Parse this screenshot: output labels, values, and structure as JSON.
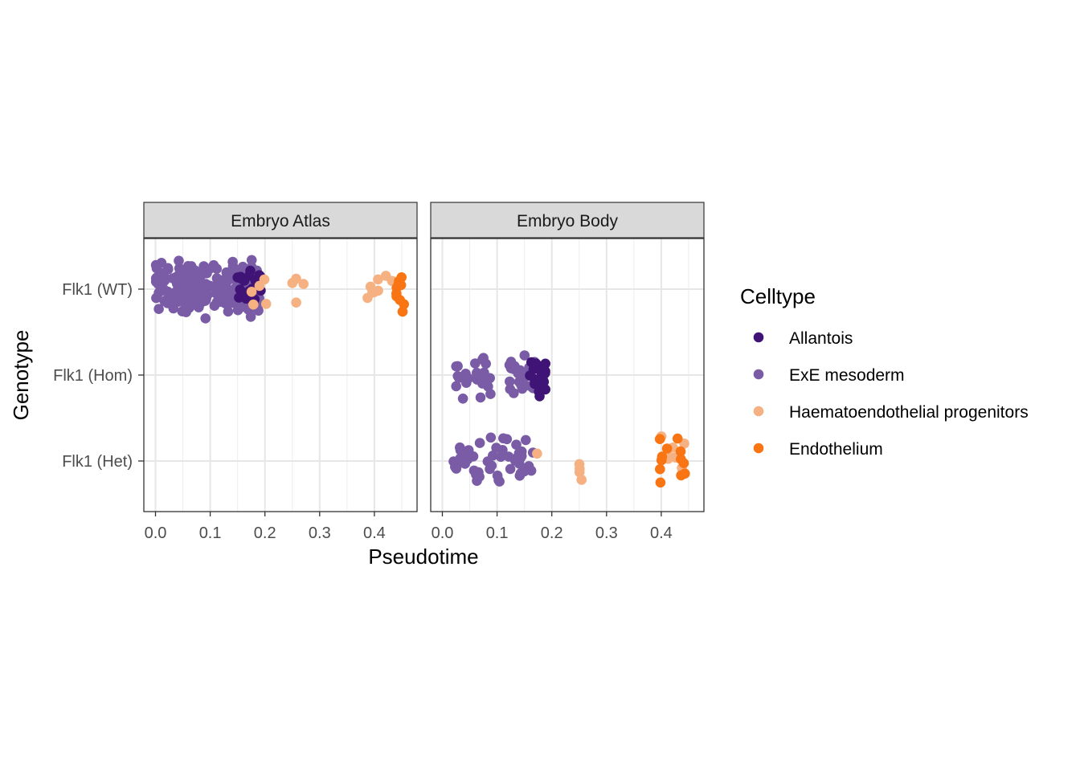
{
  "chart_data": {
    "type": "scatter",
    "subtype": "beeswarm, faceted",
    "xlabel": "Pseudotime",
    "ylabel": "Genotype",
    "xlim": [
      -0.02,
      0.48
    ],
    "x_ticks": [
      0.0,
      0.1,
      0.2,
      0.3,
      0.4
    ],
    "x_tick_labels": [
      "0.0",
      "0.1",
      "0.2",
      "0.3",
      "0.4"
    ],
    "y_categories": [
      "Flk1 (WT)",
      "Flk1 (Hom)",
      "Flk1 (Het)"
    ],
    "grid": true,
    "legend": {
      "title": "Celltype",
      "position": "right",
      "items": [
        {
          "label": "Allantois",
          "color": "#3f1476"
        },
        {
          "label": "ExE mesoderm",
          "color": "#7a5ca6"
        },
        {
          "label": "Haematoendothelial progenitors",
          "color": "#f6b183"
        },
        {
          "label": "Endothelium",
          "color": "#f97513"
        }
      ]
    },
    "facets": [
      {
        "title": "Embryo Atlas",
        "groups": [
          {
            "genotype": "Flk1 (WT)",
            "celltype": "ExE mesoderm",
            "range": [
              0.0,
              0.19
            ],
            "count": 240
          },
          {
            "genotype": "Flk1 (WT)",
            "celltype": "Allantois",
            "range": [
              0.15,
              0.195
            ],
            "count": 22
          },
          {
            "genotype": "Flk1 (WT)",
            "celltype": "Haematoendothelial progenitors",
            "range": [
              0.165,
              0.29
            ],
            "count": 9
          },
          {
            "genotype": "Flk1 (WT)",
            "celltype": "Haematoendothelial progenitors",
            "range": [
              0.385,
              0.44
            ],
            "count": 8
          },
          {
            "genotype": "Flk1 (WT)",
            "celltype": "Endothelium",
            "range": [
              0.44,
              0.455
            ],
            "count": 10
          }
        ]
      },
      {
        "title": "Embryo Body",
        "groups": [
          {
            "genotype": "Flk1 (Hom)",
            "celltype": "ExE mesoderm",
            "range": [
              0.02,
              0.09
            ],
            "count": 24
          },
          {
            "genotype": "Flk1 (Hom)",
            "celltype": "ExE mesoderm",
            "range": [
              0.12,
              0.17
            ],
            "count": 26
          },
          {
            "genotype": "Flk1 (Hom)",
            "celltype": "Allantois",
            "range": [
              0.16,
              0.19
            ],
            "count": 22
          },
          {
            "genotype": "Flk1 (Het)",
            "celltype": "ExE mesoderm",
            "range": [
              0.02,
              0.17
            ],
            "count": 52
          },
          {
            "genotype": "Flk1 (Het)",
            "celltype": "Haematoendothelial progenitors",
            "range": [
              0.165,
              0.18
            ],
            "count": 1
          },
          {
            "genotype": "Flk1 (Het)",
            "celltype": "Haematoendothelial progenitors",
            "range": [
              0.25,
              0.27
            ],
            "count": 4
          },
          {
            "genotype": "Flk1 (Het)",
            "celltype": "Haematoendothelial progenitors",
            "range": [
              0.39,
              0.445
            ],
            "count": 7
          },
          {
            "genotype": "Flk1 (Het)",
            "celltype": "Endothelium",
            "range": [
              0.39,
              0.445
            ],
            "count": 12
          }
        ]
      }
    ]
  }
}
